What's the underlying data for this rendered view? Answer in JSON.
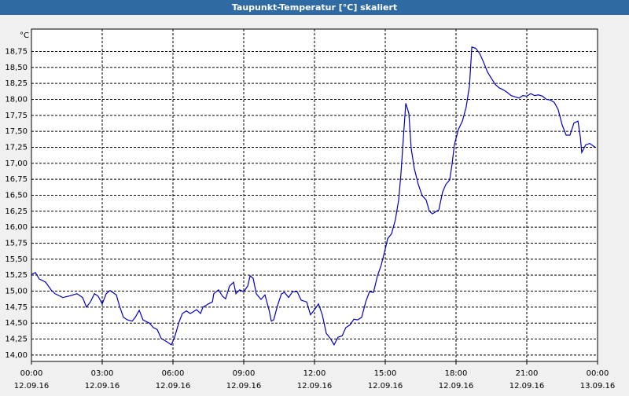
{
  "chart_data": {
    "type": "line",
    "title": "Taupunkt-Temperatur [°C] skaliert",
    "y_unit": "°C",
    "color": "#0000c0",
    "grid": true,
    "xlim": [
      0,
      24
    ],
    "ylim": [
      13.9,
      19.1
    ],
    "xticks": [
      {
        "value": 0,
        "label": "00:00"
      },
      {
        "value": 3,
        "label": "03:00"
      },
      {
        "value": 6,
        "label": "06:00"
      },
      {
        "value": 9,
        "label": "09:00"
      },
      {
        "value": 12,
        "label": "12:00"
      },
      {
        "value": 15,
        "label": "15:00"
      },
      {
        "value": 18,
        "label": "18:00"
      },
      {
        "value": 21,
        "label": "21:00"
      },
      {
        "value": 24,
        "label": "00:00"
      }
    ],
    "xtick_dates": [
      "12.09.16",
      "12.09.16",
      "12.09.16",
      "12.09.16",
      "12.09.16",
      "12.09.16",
      "12.09.16",
      "12.09.16",
      "13.09.16"
    ],
    "yticks": [
      {
        "value": 14,
        "label": "14,00"
      },
      {
        "value": 14.25,
        "label": "14,25"
      },
      {
        "value": 14.5,
        "label": "14,50"
      },
      {
        "value": 14.75,
        "label": "14,75"
      },
      {
        "value": 15,
        "label": "15,00"
      },
      {
        "value": 15.25,
        "label": "15,25"
      },
      {
        "value": 15.5,
        "label": "15,50"
      },
      {
        "value": 15.75,
        "label": "15,75"
      },
      {
        "value": 16,
        "label": "16,00"
      },
      {
        "value": 16.25,
        "label": "16,25"
      },
      {
        "value": 16.5,
        "label": "16,50"
      },
      {
        "value": 16.75,
        "label": "16,75"
      },
      {
        "value": 17,
        "label": "17,00"
      },
      {
        "value": 17.25,
        "label": "17,25"
      },
      {
        "value": 17.5,
        "label": "17,50"
      },
      {
        "value": 17.75,
        "label": "17,75"
      },
      {
        "value": 18,
        "label": "18,00"
      },
      {
        "value": 18.25,
        "label": "18,25"
      },
      {
        "value": 18.5,
        "label": "18,50"
      },
      {
        "value": 18.75,
        "label": "18,75"
      }
    ],
    "x": [
      0,
      0.17,
      0.33,
      0.6,
      0.83,
      1,
      1.33,
      1.67,
      1.93,
      2.17,
      2.33,
      2.5,
      2.67,
      2.83,
      3,
      3.17,
      3.33,
      3.6,
      3.73,
      3.9,
      4.07,
      4.27,
      4.4,
      4.57,
      4.73,
      5,
      5.17,
      5.33,
      5.5,
      5.73,
      5.93,
      6.07,
      6.27,
      6.4,
      6.57,
      6.73,
      6.83,
      7,
      7.17,
      7.27,
      7.5,
      7.67,
      7.73,
      7.93,
      8.1,
      8.23,
      8.4,
      8.57,
      8.67,
      8.83,
      9,
      9.17,
      9.27,
      9.4,
      9.53,
      9.73,
      9.9,
      10.07,
      10.17,
      10.27,
      10.43,
      10.6,
      10.73,
      10.9,
      11.07,
      11.27,
      11.43,
      11.67,
      11.83,
      12,
      12.17,
      12.33,
      12.5,
      12.67,
      12.83,
      13,
      13.17,
      13.33,
      13.5,
      13.67,
      13.83,
      14,
      14.17,
      14.33,
      14.5,
      14.67,
      14.83,
      15,
      15.1,
      15.27,
      15.43,
      15.57,
      15.67,
      15.77,
      15.87,
      16,
      16.1,
      16.23,
      16.4,
      16.57,
      16.73,
      16.87,
      17,
      17.17,
      17.27,
      17.43,
      17.57,
      17.73,
      17.83,
      17.93,
      18.1,
      18.27,
      18.43,
      18.57,
      18.67,
      18.83,
      19,
      19.17,
      19.33,
      19.5,
      19.67,
      19.83,
      20,
      20.17,
      20.33,
      20.5,
      20.67,
      20.83,
      21,
      21.17,
      21.33,
      21.5,
      21.67,
      21.83,
      22,
      22.17,
      22.33,
      22.5,
      22.67,
      22.83,
      23,
      23.17,
      23.27,
      23.33,
      23.5,
      23.67,
      23.9
    ],
    "values": [
      15.26,
      15.29,
      15.19,
      15.14,
      15.02,
      14.96,
      14.9,
      14.93,
      14.96,
      14.9,
      14.75,
      14.83,
      14.96,
      14.92,
      14.8,
      14.96,
      15.01,
      14.94,
      14.77,
      14.59,
      14.55,
      14.53,
      14.59,
      14.7,
      14.55,
      14.5,
      14.43,
      14.4,
      14.26,
      14.21,
      14.16,
      14.28,
      14.53,
      14.65,
      14.69,
      14.65,
      14.67,
      14.71,
      14.65,
      14.75,
      14.8,
      14.83,
      14.96,
      15.02,
      14.92,
      14.88,
      15.08,
      15.14,
      14.96,
      15.02,
      14.99,
      15.08,
      15.24,
      15.2,
      14.96,
      14.87,
      14.94,
      14.71,
      14.53,
      14.55,
      14.77,
      14.96,
      14.98,
      14.9,
      14.99,
      14.99,
      14.86,
      14.83,
      14.63,
      14.71,
      14.8,
      14.63,
      14.34,
      14.26,
      14.16,
      14.28,
      14.3,
      14.43,
      14.47,
      14.56,
      14.55,
      14.59,
      14.83,
      14.99,
      14.98,
      15.24,
      15.41,
      15.66,
      15.82,
      15.9,
      16.12,
      16.43,
      16.86,
      17.41,
      17.94,
      17.78,
      17.23,
      16.92,
      16.67,
      16.49,
      16.43,
      16.25,
      16.21,
      16.25,
      16.27,
      16.55,
      16.67,
      16.74,
      16.98,
      17.29,
      17.53,
      17.66,
      17.88,
      18.21,
      18.82,
      18.8,
      18.72,
      18.58,
      18.43,
      18.33,
      18.23,
      18.18,
      18.15,
      18.11,
      18.06,
      18.04,
      18.02,
      18.06,
      18.05,
      18.09,
      18.06,
      18.07,
      18.05,
      18,
      17.99,
      17.95,
      17.84,
      17.6,
      17.44,
      17.44,
      17.63,
      17.66,
      17.41,
      17.17,
      17.29,
      17.31,
      17.25
    ]
  }
}
